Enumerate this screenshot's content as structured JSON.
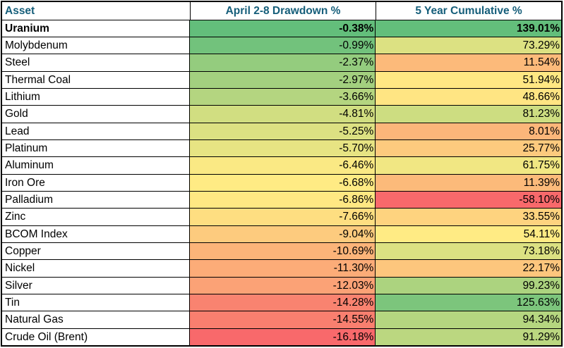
{
  "header": {
    "text_color": "#155E7A"
  },
  "chart_data": {
    "type": "table",
    "columns": [
      "Asset",
      "April 2-8 Drawdown %",
      "5 Year Cumulative %"
    ],
    "color_scale": {
      "type": "3-color",
      "min_color": "#F8696B",
      "mid_color": "#FFEB84",
      "max_color": "#63BE7B"
    },
    "rows": [
      {
        "asset": "Uranium",
        "drawdown": -0.38,
        "drawdown_label": "-0.38%",
        "drawdown_color": "#63BE7B",
        "cumulative": 139.01,
        "cumulative_label": "139.01%",
        "cumulative_color": "#63BE7B",
        "bold": true
      },
      {
        "asset": "Molybdenum",
        "drawdown": -0.99,
        "drawdown_label": "-0.99%",
        "drawdown_color": "#72C27C",
        "cumulative": 73.29,
        "cumulative_label": "73.29%",
        "cumulative_color": "#DCE182",
        "bold": false
      },
      {
        "asset": "Steel",
        "drawdown": -2.37,
        "drawdown_label": "-2.37%",
        "drawdown_color": "#94CC7E",
        "cumulative": 11.54,
        "cumulative_label": "11.54%",
        "cumulative_color": "#FCBA7A",
        "bold": false
      },
      {
        "asset": "Thermal Coal",
        "drawdown": -2.97,
        "drawdown_label": "-2.97%",
        "drawdown_color": "#A3D07F",
        "cumulative": 51.94,
        "cumulative_label": "51.94%",
        "cumulative_color": "#FFE883",
        "bold": false
      },
      {
        "asset": "Lithium",
        "drawdown": -3.66,
        "drawdown_label": "-3.66%",
        "drawdown_color": "#B4D580",
        "cumulative": 48.66,
        "cumulative_label": "48.66%",
        "cumulative_color": "#FFE583",
        "bold": false
      },
      {
        "asset": "Gold",
        "drawdown": -4.81,
        "drawdown_label": "-4.81%",
        "drawdown_color": "#D1DE81",
        "cumulative": 81.23,
        "cumulative_label": "81.23%",
        "cumulative_color": "#CDDD81",
        "bold": false
      },
      {
        "asset": "Lead",
        "drawdown": -5.25,
        "drawdown_label": "-5.25%",
        "drawdown_color": "#DCE182",
        "cumulative": 8.01,
        "cumulative_label": "8.01%",
        "cumulative_color": "#FCB67A",
        "bold": false
      },
      {
        "asset": "Platinum",
        "drawdown": -5.7,
        "drawdown_label": "-5.70%",
        "drawdown_color": "#E7E483",
        "cumulative": 25.77,
        "cumulative_label": "25.77%",
        "cumulative_color": "#FDCA7E",
        "bold": false
      },
      {
        "asset": "Aluminum",
        "drawdown": -6.46,
        "drawdown_label": "-6.46%",
        "drawdown_color": "#FAE984",
        "cumulative": 61.75,
        "cumulative_label": "61.75%",
        "cumulative_color": "#F1E783",
        "bold": false
      },
      {
        "asset": "Iron Ore",
        "drawdown": -6.68,
        "drawdown_label": "-6.68%",
        "drawdown_color": "#FFEB84",
        "cumulative": 11.39,
        "cumulative_label": "11.39%",
        "cumulative_color": "#FCBA7A",
        "bold": false
      },
      {
        "asset": "Palladium",
        "drawdown": -6.86,
        "drawdown_label": "-6.86%",
        "drawdown_color": "#FFE883",
        "cumulative": -58.1,
        "cumulative_label": "-58.10%",
        "cumulative_color": "#F8696B",
        "bold": false
      },
      {
        "asset": "Zinc",
        "drawdown": -7.66,
        "drawdown_label": "-7.66%",
        "drawdown_color": "#FEDE81",
        "cumulative": 33.55,
        "cumulative_label": "33.55%",
        "cumulative_color": "#FED37F",
        "bold": false
      },
      {
        "asset": "BCOM Index",
        "drawdown": -9.04,
        "drawdown_label": "-9.04%",
        "drawdown_color": "#FDCB7E",
        "cumulative": 54.11,
        "cumulative_label": "54.11%",
        "cumulative_color": "#FFEB84",
        "bold": false
      },
      {
        "asset": "Copper",
        "drawdown": -10.69,
        "drawdown_label": "-10.69%",
        "drawdown_color": "#FCB479",
        "cumulative": 73.18,
        "cumulative_label": "73.18%",
        "cumulative_color": "#DCE182",
        "bold": false
      },
      {
        "asset": "Nickel",
        "drawdown": -11.3,
        "drawdown_label": "-11.30%",
        "drawdown_color": "#FCAC78",
        "cumulative": 22.17,
        "cumulative_label": "22.17%",
        "cumulative_color": "#FDC67D",
        "bold": false
      },
      {
        "asset": "Silver",
        "drawdown": -12.03,
        "drawdown_label": "-12.03%",
        "drawdown_color": "#FBA276",
        "cumulative": 99.23,
        "cumulative_label": "99.23%",
        "cumulative_color": "#ACD37F",
        "bold": false
      },
      {
        "asset": "Tin",
        "drawdown": -14.28,
        "drawdown_label": "-14.28%",
        "drawdown_color": "#F98370",
        "cumulative": 125.63,
        "cumulative_label": "125.63%",
        "cumulative_color": "#7CC57C",
        "bold": false
      },
      {
        "asset": "Natural Gas",
        "drawdown": -14.55,
        "drawdown_label": "-14.55%",
        "drawdown_color": "#F97F6F",
        "cumulative": 94.34,
        "cumulative_label": "94.34%",
        "cumulative_color": "#B5D680",
        "bold": false
      },
      {
        "asset": "Crude Oil (Brent)",
        "drawdown": -16.18,
        "drawdown_label": "-16.18%",
        "drawdown_color": "#F8696B",
        "cumulative": 91.29,
        "cumulative_label": "91.29%",
        "cumulative_color": "#BBD780",
        "bold": false
      }
    ]
  }
}
